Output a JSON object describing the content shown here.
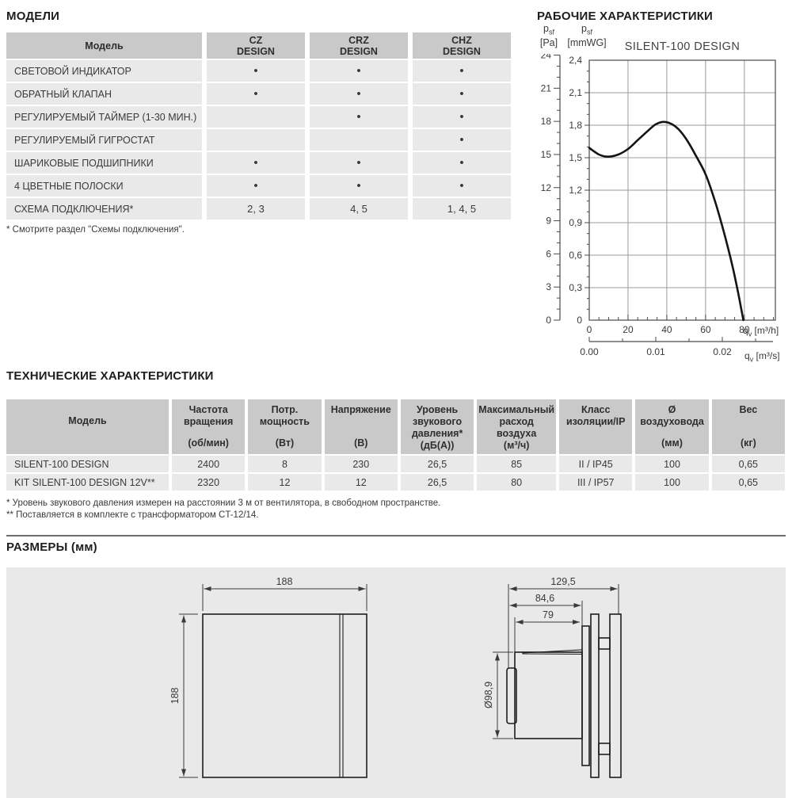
{
  "colors": {
    "table_header_gray": "#c9c9c9",
    "table_row_gray": "#e9e9e9",
    "panel_gray": "#e9e9e9",
    "heading_text": "#1d1d1b",
    "body_text": "#3a3a39",
    "chart_grid": "#9b9b9b",
    "chart_axis": "#4a4a49",
    "curve": "#141414"
  },
  "models": {
    "title": "МОДЕЛИ",
    "table": {
      "col_model": "Модель",
      "cols": [
        {
          "l1": "CZ",
          "l2": "DESIGN"
        },
        {
          "l1": "CRZ",
          "l2": "DESIGN"
        },
        {
          "l1": "CHZ",
          "l2": "DESIGN"
        }
      ],
      "rows": [
        {
          "label": "СВЕТОВОЙ ИНДИКАТОР",
          "cz": "•",
          "crz": "•",
          "chz": "•"
        },
        {
          "label": "ОБРАТНЫЙ КЛАПАН",
          "cz": "•",
          "crz": "•",
          "chz": "•"
        },
        {
          "label": "РЕГУЛИРУЕМЫЙ ТАЙМЕР (1-30 МИН.)",
          "cz": "",
          "crz": "•",
          "chz": "•"
        },
        {
          "label": "РЕГУЛИРУЕМЫЙ ГИГРОСТАТ",
          "cz": "",
          "crz": "",
          "chz": "•"
        },
        {
          "label": "ШАРИКОВЫЕ ПОДШИПНИКИ",
          "cz": "•",
          "crz": "•",
          "chz": "•"
        },
        {
          "label": "4 ЦВЕТНЫЕ ПОЛОСКИ",
          "cz": "•",
          "crz": "•",
          "chz": "•"
        },
        {
          "label": "СХЕМА ПОДКЛЮЧЕНИЯ*",
          "cz": "2, 3",
          "crz": "4, 5",
          "chz": "1, 4, 5"
        }
      ]
    },
    "footnote": "* Смотрите раздел \"Схемы подключения\"."
  },
  "performance": {
    "title": "РАБОЧИЕ ХАРАКТЕРИСТИКИ"
  },
  "chart_data": {
    "type": "line",
    "title": "SILENT-100 DESIGN",
    "y_axis_primary": {
      "sym": "p",
      "sub": "sf",
      "unit": "[Pa]",
      "ticks": [
        0,
        3,
        6,
        9,
        12,
        15,
        18,
        21,
        24
      ],
      "range": [
        0,
        24
      ]
    },
    "y_axis_secondary": {
      "sym": "p",
      "sub": "sf",
      "unit": "[mmWG]",
      "tick_labels": [
        "0",
        "0,3",
        "0,6",
        "0,9",
        "1,2",
        "1,5",
        "1,8",
        "2,1",
        "2,4"
      ],
      "range": [
        0,
        2.4
      ]
    },
    "x_axis_primary": {
      "sym": "q",
      "sub": "v",
      "unit": "[m³/h]",
      "ticks": [
        0,
        20,
        40,
        60,
        80
      ],
      "range": [
        0,
        96
      ]
    },
    "x_axis_secondary": {
      "sym": "q",
      "sub": "v",
      "unit": "[m³/s]",
      "tick_labels": [
        "0.00",
        "0.01",
        "0.02"
      ]
    },
    "grid": true,
    "series": [
      {
        "name": "SILENT-100 DESIGN",
        "points": [
          [
            0,
            15.6
          ],
          [
            5,
            15.0
          ],
          [
            9.5,
            14.8
          ],
          [
            15,
            15.0
          ],
          [
            20,
            15.5
          ],
          [
            25,
            16.3
          ],
          [
            30,
            17.1
          ],
          [
            34,
            17.7
          ],
          [
            38,
            17.95
          ],
          [
            42,
            17.8
          ],
          [
            46,
            17.3
          ],
          [
            50,
            16.4
          ],
          [
            55,
            14.9
          ],
          [
            60,
            13.2
          ],
          [
            65,
            10.7
          ],
          [
            70,
            7.6
          ],
          [
            74,
            4.8
          ],
          [
            77,
            2.3
          ],
          [
            79.5,
            0
          ]
        ]
      }
    ]
  },
  "tech": {
    "title": "ТЕХНИЧЕСКИЕ ХАРАКТЕРИСТИКИ",
    "table": {
      "columns": [
        {
          "label": "Модель",
          "unit": ""
        },
        {
          "label": "Частота вращения",
          "unit": "(об/мин)"
        },
        {
          "label": "Потр. мощность",
          "unit": "(Вт)"
        },
        {
          "label": "Напряжение",
          "unit": "(В)"
        },
        {
          "label": "Уровень звукового давления*",
          "unit": "(дБ(А))"
        },
        {
          "label": "Максимальный расход воздуха",
          "unit": "(м³/ч)"
        },
        {
          "label": "Класс изоляции/IP",
          "unit": ""
        },
        {
          "label": "Ø воздуховода",
          "unit": "(мм)"
        },
        {
          "label": "Вес",
          "unit": "(кг)"
        }
      ],
      "rows": [
        {
          "cells": [
            "SILENT-100 DESIGN",
            "2400",
            "8",
            "230",
            "26,5",
            "85",
            "II / IP45",
            "100",
            "0,65"
          ]
        },
        {
          "cells": [
            "KIT SILENT-100 DESIGN 12V**",
            "2320",
            "12",
            "12",
            "26,5",
            "80",
            "III / IP57",
            "100",
            "0,65"
          ]
        }
      ]
    },
    "footnotes": [
      "* Уровень звукового давления измерен на расстоянии 3 м от вентилятора, в свободном пространстве.",
      "** Поставляется в комплекте с трансформатором CT-12/14."
    ]
  },
  "dimensions": {
    "title": "РАЗМЕРЫ (мм)",
    "front_view": {
      "width": "188",
      "height": "188"
    },
    "side_view": {
      "depth_total": "129,5",
      "depth_body": "84,6",
      "depth_duct": "79",
      "duct_diameter": "Ø98,9"
    }
  }
}
